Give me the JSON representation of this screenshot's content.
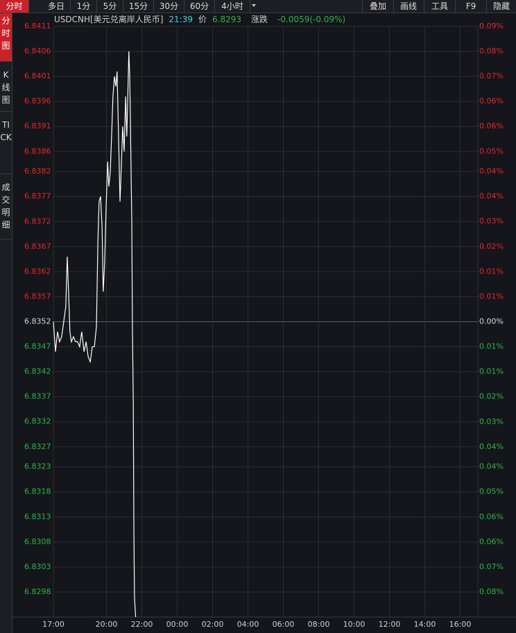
{
  "toolbar": {
    "tabs": [
      "分时",
      "多日",
      "1分",
      "5分",
      "15分",
      "30分",
      "60分",
      "4小时"
    ],
    "tools": [
      "叠加",
      "画线",
      "工具",
      "F9",
      "隐藏"
    ]
  },
  "sidebar": [
    "分时图",
    "K线图",
    "TICK",
    "成交明细"
  ],
  "quote": {
    "symbol": "USDCNH[美元兑离岸人民币]",
    "time": "21:39",
    "price_label": "价",
    "price": 6.8293,
    "change_label": "涨跌",
    "change": "-0.0059(-0.09%)"
  },
  "chart_data": {
    "type": "line",
    "color": "#ffffff",
    "up_color": "#e8242b",
    "down_color": "#2fb34a",
    "flat_color": "#d8d8d8",
    "grid": true,
    "x": [
      "17:00",
      "17:07",
      "17:14",
      "17:21",
      "17:28",
      "17:35",
      "17:42",
      "17:47",
      "17:52",
      "17:56",
      "18:01",
      "18:08",
      "18:15",
      "18:22",
      "18:29",
      "18:36",
      "18:44",
      "18:51",
      "18:58",
      "19:05",
      "19:12",
      "19:19",
      "19:26",
      "19:31",
      "19:35",
      "19:40",
      "19:45",
      "19:49",
      "19:54",
      "19:59",
      "20:04",
      "20:08",
      "20:13",
      "20:18",
      "20:22",
      "20:27",
      "20:32",
      "20:36",
      "20:41",
      "20:46",
      "20:51",
      "20:55",
      "21:00",
      "21:05",
      "21:09",
      "21:14",
      "21:16",
      "21:19",
      "21:21",
      "21:24",
      "21:26",
      "21:28",
      "21:31",
      "21:33",
      "21:35",
      "21:39"
    ],
    "values": [
      6.8352,
      6.8346,
      6.835,
      6.8348,
      6.8349,
      6.8352,
      6.8355,
      6.8365,
      6.8357,
      6.835,
      6.8348,
      6.8349,
      6.8348,
      6.8348,
      6.8347,
      6.835,
      6.8346,
      6.8348,
      6.8345,
      6.8344,
      6.8347,
      6.8347,
      6.8351,
      6.8368,
      6.8376,
      6.8377,
      6.8371,
      6.8358,
      6.8364,
      6.8375,
      6.8384,
      6.8379,
      6.8382,
      6.839,
      6.8397,
      6.8401,
      6.8399,
      6.8402,
      6.8389,
      6.8376,
      6.8384,
      6.8391,
      6.8386,
      6.8397,
      6.8389,
      6.8401,
      6.8406,
      6.8401,
      6.8393,
      6.838,
      6.8372,
      6.8351,
      6.8336,
      6.8311,
      6.8297,
      6.8293
    ],
    "xlim": [
      "17:00",
      "17:00"
    ],
    "xticks": [
      "17:00",
      "20:00",
      "22:00",
      "00:00",
      "02:00",
      "04:00",
      "06:00",
      "08:00",
      "10:00",
      "12:00",
      "14:00",
      "16:00"
    ],
    "ylim": [
      6.8293,
      6.8411
    ],
    "yticks": [
      6.8411,
      6.8406,
      6.8401,
      6.8396,
      6.8391,
      6.8386,
      6.8382,
      6.8377,
      6.8372,
      6.8367,
      6.8362,
      6.8357,
      6.8352,
      6.8347,
      6.8342,
      6.8337,
      6.8332,
      6.8327,
      6.8323,
      6.8318,
      6.8313,
      6.8308,
      6.8303,
      6.8298
    ],
    "y2lim": [
      -0.0863,
      0.0863
    ],
    "y2ticks": [
      {
        "value": 0.0863,
        "label": "0.09%"
      },
      {
        "value": 0.079,
        "label": "0.08%"
      },
      {
        "value": 0.0717,
        "label": "0.07%"
      },
      {
        "value": 0.0644,
        "label": "0.06%"
      },
      {
        "value": 0.0571,
        "label": "0.06%"
      },
      {
        "value": 0.0497,
        "label": "0.05%"
      },
      {
        "value": 0.0439,
        "label": "0.04%"
      },
      {
        "value": 0.0366,
        "label": "0.04%"
      },
      {
        "value": 0.0293,
        "label": "0.03%"
      },
      {
        "value": 0.0219,
        "label": "0.02%"
      },
      {
        "value": 0.0146,
        "label": "0.01%"
      },
      {
        "value": 0.0073,
        "label": "0.01%"
      },
      {
        "value": 0,
        "label": "0.00%"
      },
      {
        "value": -0.0073,
        "label": "0.01%"
      },
      {
        "value": -0.0146,
        "label": "0.01%"
      },
      {
        "value": -0.0219,
        "label": "0.02%"
      },
      {
        "value": -0.0293,
        "label": "0.03%"
      },
      {
        "value": -0.0366,
        "label": "0.04%"
      },
      {
        "value": -0.0424,
        "label": "0.04%"
      },
      {
        "value": -0.0497,
        "label": "0.05%"
      },
      {
        "value": -0.0571,
        "label": "0.06%"
      },
      {
        "value": -0.0644,
        "label": "0.06%"
      },
      {
        "value": -0.0717,
        "label": "0.07%"
      },
      {
        "value": -0.079,
        "label": "0.08%"
      }
    ]
  }
}
